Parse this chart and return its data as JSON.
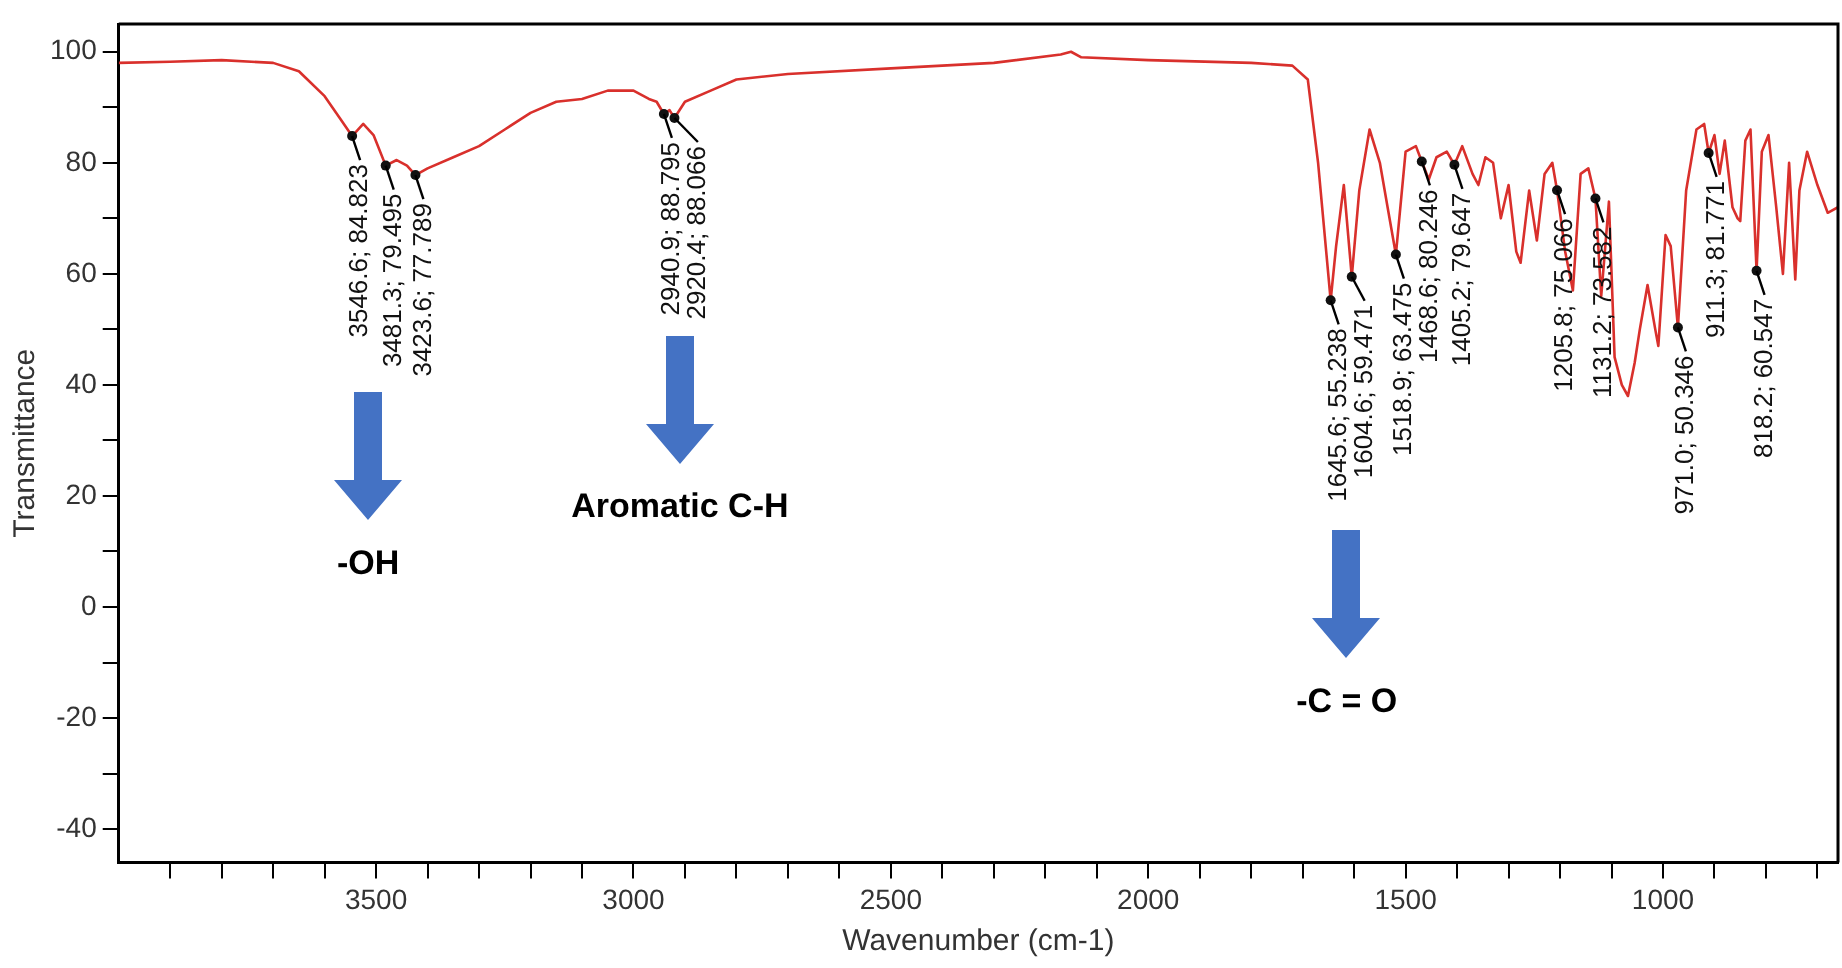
{
  "chart_data": {
    "type": "line",
    "xlabel": "Wavenumber (cm-1)",
    "ylabel": "Transmittance",
    "xlim": [
      4000,
      660
    ],
    "ylim": [
      -46,
      105
    ],
    "xticks": [
      {
        "value": 3900,
        "label": null
      },
      {
        "value": 3800,
        "label": null
      },
      {
        "value": 3700,
        "label": null
      },
      {
        "value": 3600,
        "label": null
      },
      3500,
      {
        "value": 3400,
        "label": null
      },
      {
        "value": 3300,
        "label": null
      },
      {
        "value": 3200,
        "label": null
      },
      {
        "value": 3100,
        "label": null
      },
      3000,
      {
        "value": 2900,
        "label": null
      },
      {
        "value": 2800,
        "label": null
      },
      {
        "value": 2700,
        "label": null
      },
      {
        "value": 2600,
        "label": null
      },
      2500,
      {
        "value": 2400,
        "label": null
      },
      {
        "value": 2300,
        "label": null
      },
      {
        "value": 2200,
        "label": null
      },
      {
        "value": 2100,
        "label": null
      },
      2000,
      {
        "value": 1900,
        "label": null
      },
      {
        "value": 1800,
        "label": null
      },
      {
        "value": 1700,
        "label": null
      },
      {
        "value": 1600,
        "label": null
      },
      1500,
      {
        "value": 1400,
        "label": null
      },
      {
        "value": 1300,
        "label": null
      },
      {
        "value": 1200,
        "label": null
      },
      {
        "value": 1100,
        "label": null
      },
      1000,
      {
        "value": 900,
        "label": null
      },
      {
        "value": 800,
        "label": null
      },
      {
        "value": 700,
        "label": null
      }
    ],
    "yticks": [
      -40,
      {
        "value": -30,
        "label": null
      },
      -20,
      {
        "value": -10,
        "label": null
      },
      0,
      {
        "value": 10,
        "label": null
      },
      20,
      {
        "value": 30,
        "label": null
      },
      40,
      {
        "value": 50,
        "label": null
      },
      60,
      {
        "value": 70,
        "label": null
      },
      80,
      {
        "value": 90,
        "label": null
      },
      100
    ],
    "grid": false,
    "legend": false,
    "marker": "none",
    "line_style": "solid",
    "series": [
      {
        "color": "#d9302c",
        "x": [
          4000,
          3900,
          3800,
          3700,
          3650,
          3600,
          3570,
          3546.6,
          3525,
          3505,
          3481.3,
          3460,
          3440,
          3423.6,
          3400,
          3350,
          3300,
          3250,
          3200,
          3150,
          3100,
          3050,
          3000,
          2970,
          2955,
          2940.9,
          2930,
          2920.4,
          2900,
          2850,
          2800,
          2700,
          2500,
          2300,
          2170,
          2150,
          2130,
          2000,
          1800,
          1720,
          1690,
          1670,
          1645.6,
          1635,
          1620,
          1604.6,
          1590,
          1570,
          1550,
          1535,
          1518.9,
          1500,
          1480,
          1468.6,
          1455,
          1440,
          1420,
          1405.2,
          1390,
          1370,
          1358.6,
          1345,
          1330,
          1315,
          1300,
          1285,
          1276.6,
          1260,
          1245,
          1230,
          1215,
          1205.8,
          1190,
          1175,
          1160,
          1145,
          1131.2,
          1120,
          1105,
          1094,
          1080,
          1068,
          1055,
          1045,
          1030,
          1015,
          1009,
          995,
          985,
          971.0,
          955,
          935,
          920,
          911.3,
          900,
          890,
          880,
          865,
          855,
          849.9,
          840,
          830,
          818.2,
          808,
          795,
          780,
          767,
          755,
          743,
          735,
          720,
          700,
          680,
          660
        ],
        "values": [
          98,
          98.2,
          98.5,
          98,
          96.5,
          92,
          88,
          84.823,
          87,
          85,
          79.495,
          80.5,
          79.5,
          77.789,
          79,
          81,
          83,
          86,
          89,
          91,
          91.5,
          93,
          93,
          91.5,
          91,
          88.795,
          89.5,
          88.066,
          91,
          93,
          95,
          96,
          97,
          98,
          99.5,
          100,
          99,
          98.5,
          98,
          97.5,
          95,
          80,
          55.238,
          65,
          76,
          59.471,
          75,
          86,
          80,
          72,
          63.475,
          82,
          83,
          80.246,
          77,
          81,
          82,
          79.647,
          83,
          78,
          76,
          81,
          80,
          70,
          76,
          64,
          62,
          75,
          66,
          78,
          80,
          75.066,
          64,
          57,
          78,
          79,
          73.582,
          56,
          73,
          45,
          40,
          38,
          44,
          50,
          58,
          50,
          47,
          67,
          65,
          50.346,
          75,
          86,
          87,
          81.771,
          85,
          78,
          84,
          72,
          70,
          69.5,
          84,
          86,
          60.547,
          82,
          85,
          72,
          60,
          80,
          59,
          75,
          82,
          76,
          71,
          72
        ],
        "value_labels": [
          null,
          null,
          null,
          null,
          null,
          null,
          null,
          "3546.6; 84.823",
          null,
          null,
          "3481.3; 79.495",
          null,
          null,
          "3423.6; 77.789",
          null,
          null,
          null,
          null,
          null,
          null,
          null,
          null,
          null,
          null,
          null,
          "2940.9; 88.795",
          null,
          "2920.4; 88.066",
          null,
          null,
          null,
          null,
          null,
          null,
          null,
          null,
          null,
          null,
          null,
          null,
          null,
          null,
          "1645.6; 55.238",
          null,
          null,
          "1604.6; 59.471",
          null,
          null,
          null,
          null,
          "1518.9; 63.475",
          null,
          null,
          "1468.6; 80.246",
          null,
          null,
          null,
          "1405.2; 79.647",
          null,
          null,
          null,
          null,
          null,
          null,
          null,
          null,
          null,
          null,
          null,
          null,
          null,
          "1205.8; 75.066",
          null,
          null,
          null,
          null,
          "1131.2; 73.582",
          null,
          null,
          null,
          null,
          null,
          null,
          null,
          null,
          null,
          null,
          null,
          null,
          "971.0; 50.346",
          null,
          null,
          null,
          "911.3; 81.771",
          null,
          null,
          null,
          null,
          null,
          null,
          null,
          null,
          "818.2; 60.547",
          null,
          null,
          null,
          null,
          null,
          null,
          null,
          null,
          null,
          null,
          null
        ]
      }
    ],
    "annotations": [
      "-OH",
      "Aromatic C-H",
      "-C = O"
    ]
  }
}
